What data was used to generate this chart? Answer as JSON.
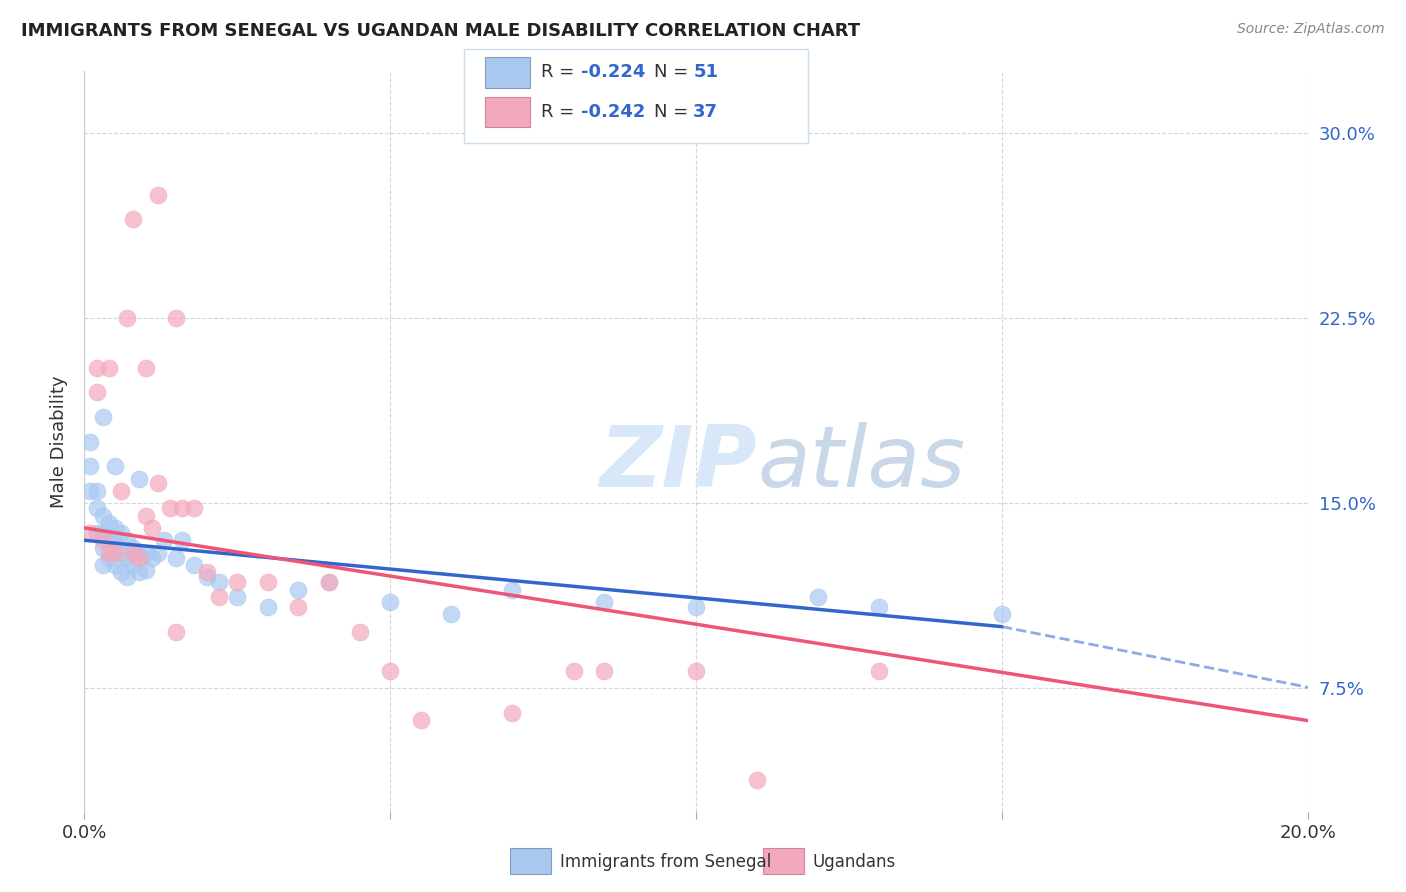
{
  "title": "IMMIGRANTS FROM SENEGAL VS UGANDAN MALE DISABILITY CORRELATION CHART",
  "source": "Source: ZipAtlas.com",
  "ylabel": "Male Disability",
  "y_ticks": [
    0.075,
    0.15,
    0.225,
    0.3
  ],
  "y_tick_labels": [
    "7.5%",
    "15.0%",
    "22.5%",
    "30.0%"
  ],
  "xlim": [
    0.0,
    0.2
  ],
  "ylim": [
    0.025,
    0.325
  ],
  "legend_blue_r": "-0.224",
  "legend_blue_n": "51",
  "legend_pink_r": "-0.242",
  "legend_pink_n": "37",
  "legend_label_blue": "Immigrants from Senegal",
  "legend_label_pink": "Ugandans",
  "blue_color": "#A8C8F0",
  "pink_color": "#F4A8BC",
  "blue_line_color": "#3366CC",
  "pink_line_color": "#EE5577",
  "watermark_color": "#D8E8F8",
  "grid_color": "#CCCCCC",
  "rn_color": "#3366CC",
  "blue_x": [
    0.001,
    0.001,
    0.001,
    0.002,
    0.002,
    0.002,
    0.003,
    0.003,
    0.003,
    0.003,
    0.004,
    0.004,
    0.004,
    0.005,
    0.005,
    0.005,
    0.006,
    0.006,
    0.006,
    0.007,
    0.007,
    0.007,
    0.008,
    0.008,
    0.009,
    0.009,
    0.01,
    0.01,
    0.011,
    0.012,
    0.013,
    0.015,
    0.016,
    0.018,
    0.02,
    0.022,
    0.025,
    0.03,
    0.035,
    0.04,
    0.05,
    0.06,
    0.07,
    0.085,
    0.1,
    0.12,
    0.13,
    0.15,
    0.003,
    0.005,
    0.009
  ],
  "blue_y": [
    0.175,
    0.165,
    0.155,
    0.155,
    0.148,
    0.138,
    0.145,
    0.138,
    0.132,
    0.125,
    0.142,
    0.135,
    0.128,
    0.14,
    0.133,
    0.125,
    0.138,
    0.13,
    0.122,
    0.135,
    0.128,
    0.12,
    0.132,
    0.125,
    0.13,
    0.122,
    0.13,
    0.123,
    0.128,
    0.13,
    0.135,
    0.128,
    0.135,
    0.125,
    0.12,
    0.118,
    0.112,
    0.108,
    0.115,
    0.118,
    0.11,
    0.105,
    0.115,
    0.11,
    0.108,
    0.112,
    0.108,
    0.105,
    0.185,
    0.165,
    0.16
  ],
  "pink_x": [
    0.001,
    0.002,
    0.002,
    0.003,
    0.004,
    0.004,
    0.005,
    0.006,
    0.007,
    0.008,
    0.009,
    0.01,
    0.011,
    0.012,
    0.014,
    0.015,
    0.016,
    0.018,
    0.02,
    0.022,
    0.025,
    0.03,
    0.035,
    0.04,
    0.045,
    0.055,
    0.07,
    0.085,
    0.1,
    0.13,
    0.008,
    0.01,
    0.012,
    0.015,
    0.05,
    0.08,
    0.11
  ],
  "pink_y": [
    0.138,
    0.205,
    0.195,
    0.135,
    0.205,
    0.13,
    0.13,
    0.155,
    0.225,
    0.13,
    0.128,
    0.145,
    0.14,
    0.275,
    0.148,
    0.225,
    0.148,
    0.148,
    0.122,
    0.112,
    0.118,
    0.118,
    0.108,
    0.118,
    0.098,
    0.062,
    0.065,
    0.082,
    0.082,
    0.082,
    0.265,
    0.205,
    0.158,
    0.098,
    0.082,
    0.082,
    0.038
  ]
}
